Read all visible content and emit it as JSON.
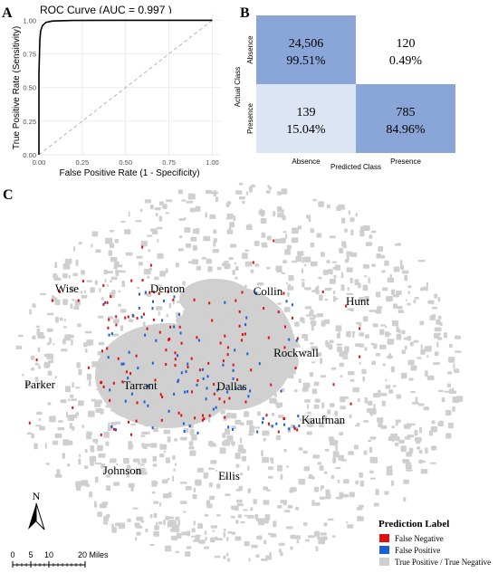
{
  "chart_data": [
    {
      "panel": "A",
      "type": "line",
      "title": "ROC Curve (AUC =  0.997 )",
      "xlabel": "False Positive Rate (1 - Specificity)",
      "ylabel": "True Positive Rate (Sensitivity)",
      "xlim": [
        0,
        1.05
      ],
      "ylim": [
        0,
        1.05
      ],
      "xticks": [
        "0.00",
        "0.25",
        "0.50",
        "0.75",
        "1.00"
      ],
      "yticks": [
        "0.00",
        "0.25",
        "0.50",
        "0.75",
        "1.00"
      ],
      "grid": true,
      "series": [
        {
          "values": [
            [
              0,
              0
            ],
            [
              0,
              0.6
            ],
            [
              0.005,
              0.85
            ],
            [
              0.01,
              0.92
            ],
            [
              0.02,
              0.96
            ],
            [
              0.04,
              0.985
            ],
            [
              0.08,
              0.995
            ],
            [
              0.2,
              0.999
            ],
            [
              0.5,
              1.0
            ],
            [
              1.0,
              1.0
            ]
          ]
        }
      ],
      "reference_line": [
        [
          0,
          0
        ],
        [
          1,
          1
        ]
      ],
      "colors": {
        "curve": "#000000",
        "reference": "#b5b5b5"
      }
    },
    {
      "panel": "B",
      "type": "heatmap",
      "xlabel": "Predicted Class",
      "ylabel": "Actual Class",
      "x_categories": [
        "Absence",
        "Presence"
      ],
      "y_categories": [
        "Absence",
        "Presence"
      ],
      "cells": [
        {
          "actual": "Absence",
          "predicted": "Absence",
          "count": "24,506",
          "percent": "99.51%",
          "color": "#8aa6d9"
        },
        {
          "actual": "Absence",
          "predicted": "Presence",
          "count": "120",
          "percent": "0.49%",
          "color": "#ffffff"
        },
        {
          "actual": "Presence",
          "predicted": "Absence",
          "count": "139",
          "percent": "15.04%",
          "color": "#dde5f4"
        },
        {
          "actual": "Presence",
          "predicted": "Presence",
          "count": "785",
          "percent": "84.96%",
          "color": "#8aa6d9"
        }
      ]
    },
    {
      "panel": "C",
      "type": "scatter",
      "county_labels": [
        "Wise",
        "Denton",
        "Collin",
        "Hunt",
        "Parker",
        "Tarrant",
        "Dallas",
        "Rockwall",
        "Kaufman",
        "Johnson",
        "Ellis"
      ],
      "legend": {
        "title": "Prediction Label",
        "position": "bottom-right",
        "items": [
          {
            "label": "False Negative",
            "color": "#e01010"
          },
          {
            "label": "False Positive",
            "color": "#1a5fd6"
          },
          {
            "label": "True Positive / True Negative",
            "color": "#cfcfcf"
          }
        ]
      },
      "north_label": "N",
      "scale_bar": {
        "ticks": [
          "0",
          "5",
          "10",
          "20 Miles"
        ]
      }
    }
  ],
  "panel_labels": {
    "a": "A",
    "b": "B",
    "c": "C"
  }
}
